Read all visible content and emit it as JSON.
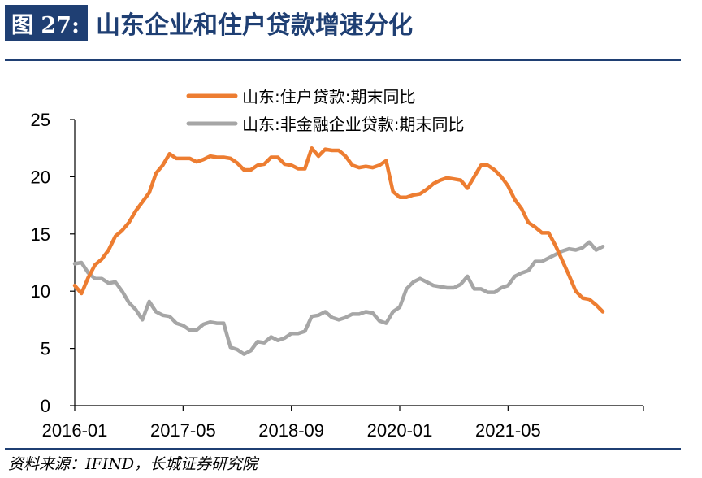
{
  "header": {
    "figure_label": "图 27:",
    "title": "山东企业和住户贷款增速分化"
  },
  "source": "资料来源：IFIND，长城证券研究院",
  "colors": {
    "accent": "#1f3f73",
    "series_orange": "#ed7d31",
    "series_gray": "#a6a6a6"
  },
  "chart_data": {
    "type": "line",
    "ylim": [
      0,
      25
    ],
    "yticks": [
      "0",
      "5",
      "10",
      "15",
      "20",
      "25"
    ],
    "xticks": [
      "2016-01",
      "2017-05",
      "2018-09",
      "2020-01",
      "2021-05"
    ],
    "grid": false,
    "legend": "top",
    "x_start": "2016-01",
    "series": [
      {
        "name": "山东:住户贷款:期末同比",
        "color": "#ed7d31",
        "values": [
          10.5,
          9.8,
          11.2,
          12.3,
          12.8,
          13.6,
          14.8,
          15.3,
          16.0,
          17.0,
          17.8,
          18.6,
          20.3,
          21.0,
          22.0,
          21.6,
          21.6,
          21.6,
          21.3,
          21.5,
          21.8,
          21.7,
          21.7,
          21.6,
          21.2,
          20.6,
          20.6,
          21.0,
          21.1,
          21.7,
          21.7,
          21.1,
          21.0,
          20.7,
          20.7,
          22.5,
          21.8,
          22.4,
          22.3,
          22.3,
          21.8,
          21.0,
          20.8,
          20.9,
          20.8,
          21.0,
          21.4,
          18.7,
          18.2,
          18.2,
          18.4,
          18.5,
          18.9,
          19.4,
          19.7,
          19.9,
          19.8,
          19.7,
          19.0,
          20.0,
          21.0,
          21.0,
          20.6,
          20.0,
          19.2,
          18.0,
          17.2,
          16.0,
          15.6,
          15.1,
          15.1,
          14.0,
          12.7,
          11.4,
          10.0,
          9.4,
          9.3,
          8.8,
          8.2
        ]
      },
      {
        "name": "山东:非金融企业贷款:期末同比",
        "color": "#a6a6a6",
        "values": [
          12.4,
          12.5,
          11.6,
          11.1,
          11.1,
          10.7,
          10.8,
          10.0,
          9.0,
          8.4,
          7.5,
          9.1,
          8.2,
          7.9,
          7.8,
          7.2,
          7.0,
          6.6,
          6.6,
          7.1,
          7.3,
          7.2,
          7.2,
          5.1,
          4.9,
          4.5,
          4.8,
          5.6,
          5.5,
          6.0,
          5.7,
          5.9,
          6.3,
          6.3,
          6.5,
          7.8,
          7.9,
          8.2,
          7.7,
          7.5,
          7.7,
          8.0,
          8.0,
          8.2,
          8.1,
          7.4,
          7.2,
          8.2,
          8.6,
          10.2,
          10.8,
          11.1,
          10.8,
          10.5,
          10.4,
          10.3,
          10.3,
          10.6,
          11.3,
          10.2,
          10.2,
          9.9,
          9.9,
          10.3,
          10.5,
          11.3,
          11.6,
          11.8,
          12.6,
          12.6,
          12.9,
          13.2,
          13.5,
          13.7,
          13.6,
          13.8,
          14.3,
          13.6,
          13.9
        ]
      }
    ]
  }
}
